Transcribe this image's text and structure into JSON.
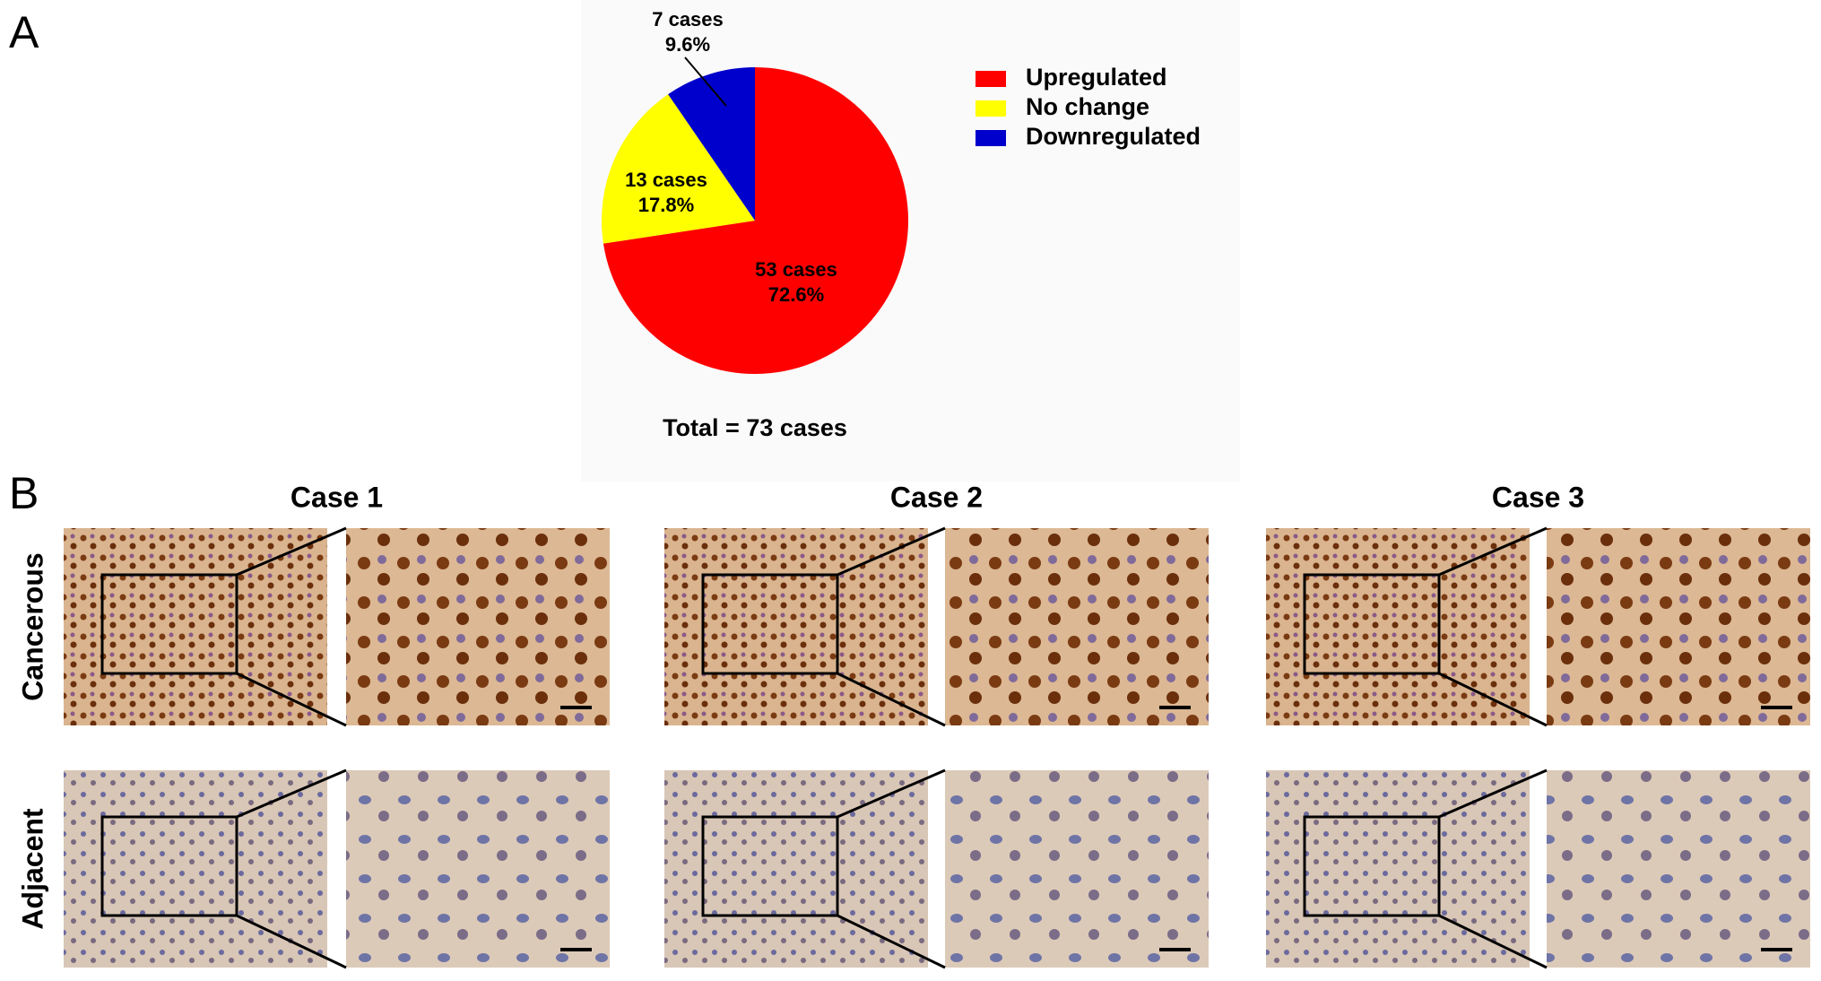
{
  "panel_a": "A",
  "panel_b": "B",
  "chart_data": {
    "type": "pie",
    "categories": [
      "Upregulated",
      "No change",
      "Downregulated"
    ],
    "values": [
      53,
      13,
      7
    ],
    "value_labels": [
      "53 cases",
      "13 cases",
      "7 cases"
    ],
    "percents": [
      72.6,
      17.8,
      9.6
    ],
    "percent_labels": [
      "72.6%",
      "17.8%",
      "9.6%"
    ],
    "colors": [
      "#ff0000",
      "#ffff00",
      "#0000cc"
    ],
    "legend": "right",
    "total_label": "Total = 73 cases"
  },
  "cases": [
    "Case 1",
    "Case 2",
    "Case 3"
  ],
  "rows": [
    "Cancerous",
    "Adjacent"
  ]
}
